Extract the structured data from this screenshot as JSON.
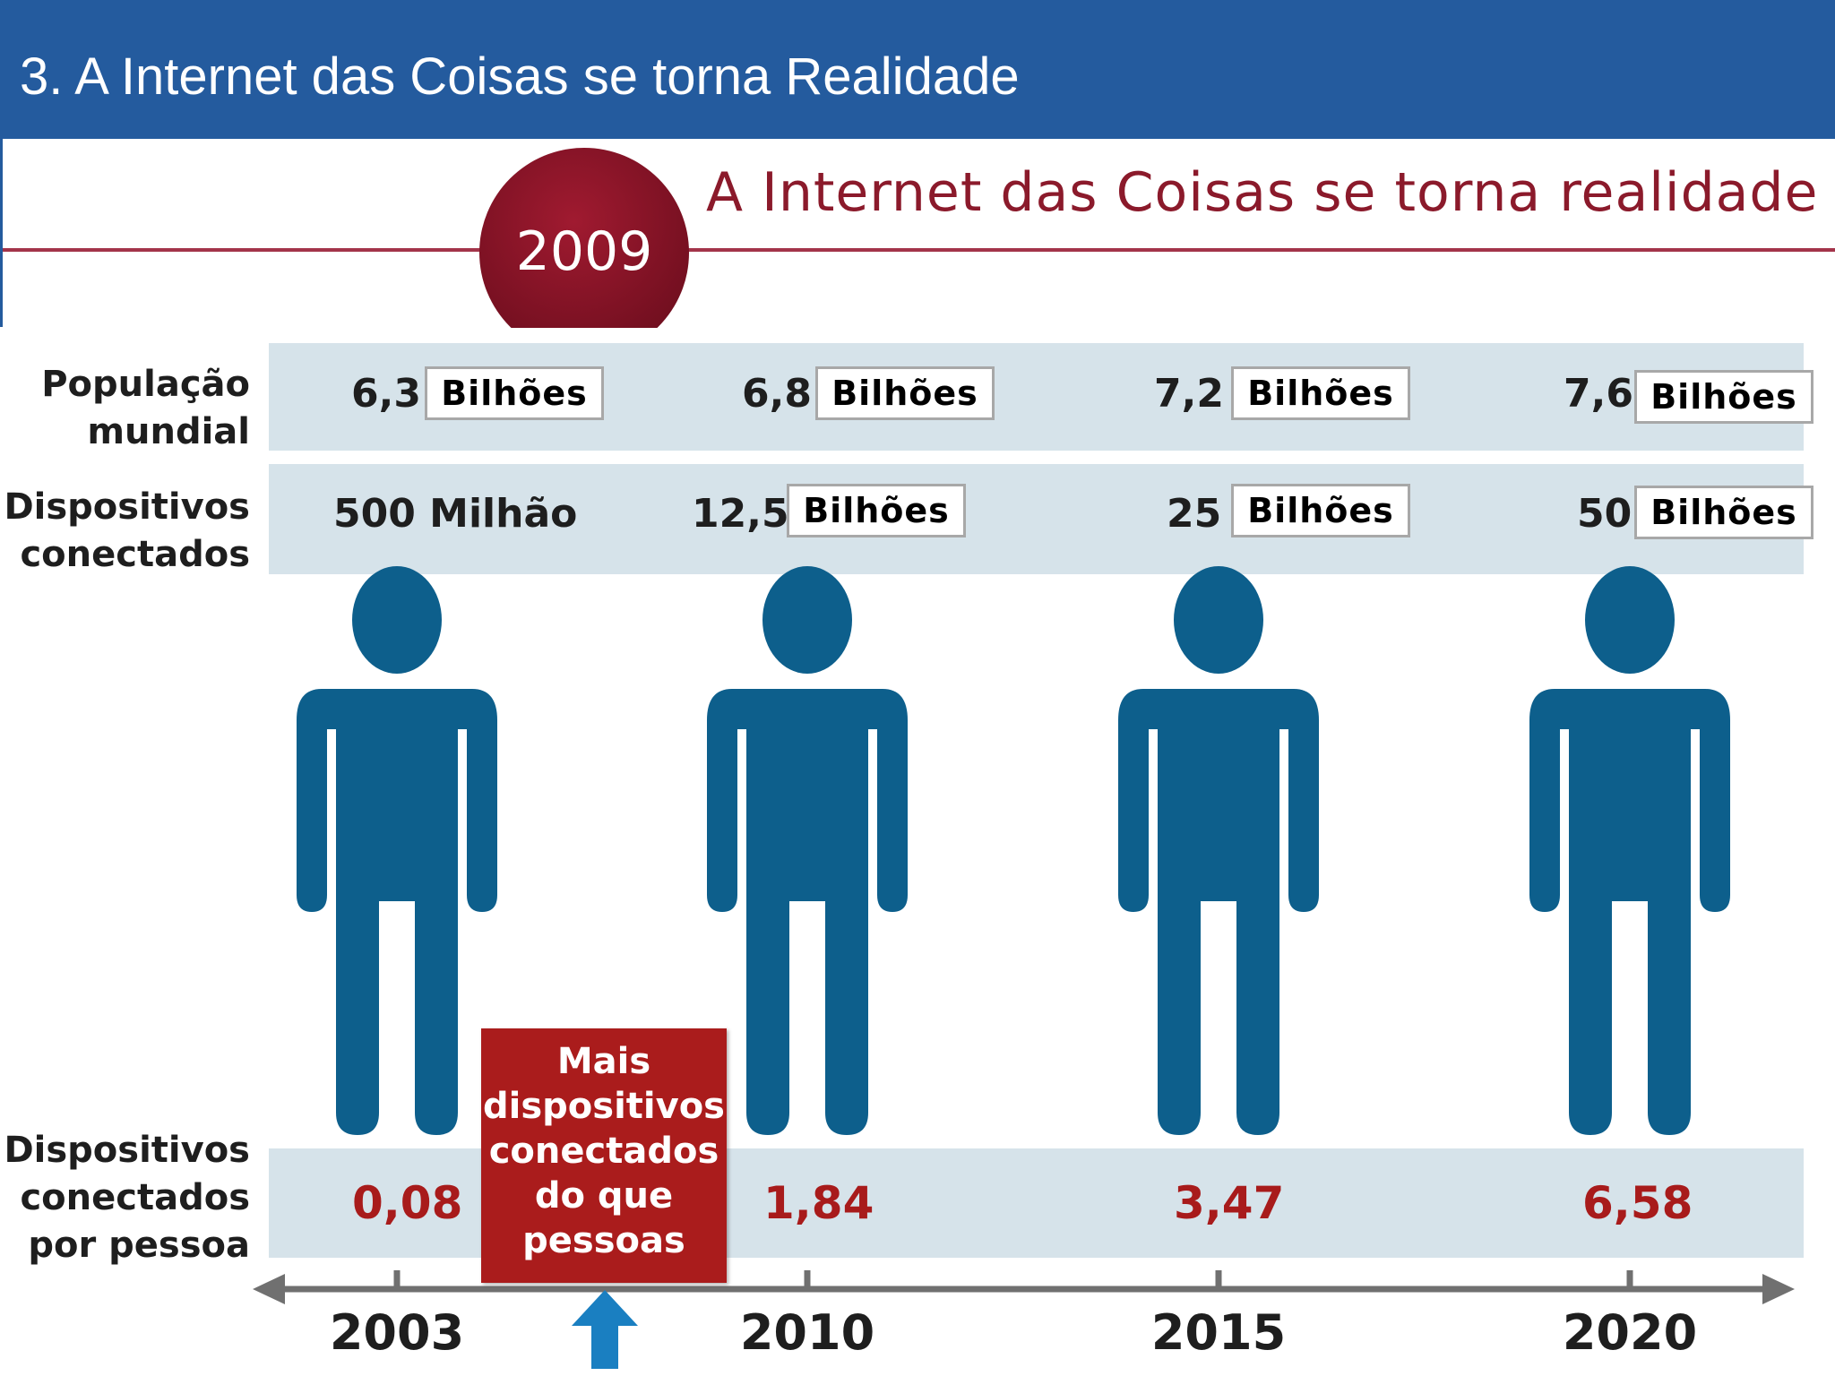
{
  "header": {
    "title": "3. A Internet das Coisas se torna Realidade"
  },
  "infographic": {
    "title": "A Internet das Coisas se torna realidade",
    "milestone_year": "2009",
    "row_labels": {
      "population": [
        "População",
        "mundial"
      ],
      "devices": [
        "Dispositivos",
        "conectados"
      ],
      "per_person": [
        "Dispositivos",
        "conectados",
        "por pessoa"
      ]
    },
    "columns": [
      {
        "year": "2003",
        "population": "6,3",
        "population_unit": "Bilhões",
        "devices": "500 Milhão",
        "devices_unit": "",
        "per_person": "0,08"
      },
      {
        "year": "2010",
        "population": "6,8",
        "population_unit": "Bilhões",
        "devices": "12,5",
        "devices_unit": "Bilhões",
        "per_person": "1,84"
      },
      {
        "year": "2015",
        "population": "7,2",
        "population_unit": "Bilhões",
        "devices": "25",
        "devices_unit": "Bilhões",
        "per_person": "3,47"
      },
      {
        "year": "2020",
        "population": "7,6",
        "population_unit": "Bilhões",
        "devices": "50",
        "devices_unit": "Bilhões",
        "per_person": "6,58"
      }
    ],
    "callout": "Mais\ndispositivos\nconectados\ndo que\npessoas",
    "colors": {
      "header_blue": "#245b9e",
      "crimson": "#8b1a2b",
      "figure_blue": "#0d5f8c",
      "band": "#d6e3ea",
      "callout_red": "#aa1c1c",
      "arrow_blue": "#1a7fc1"
    },
    "icons": [
      "person-icon",
      "up-arrow-icon",
      "timeline-arrow"
    ]
  }
}
